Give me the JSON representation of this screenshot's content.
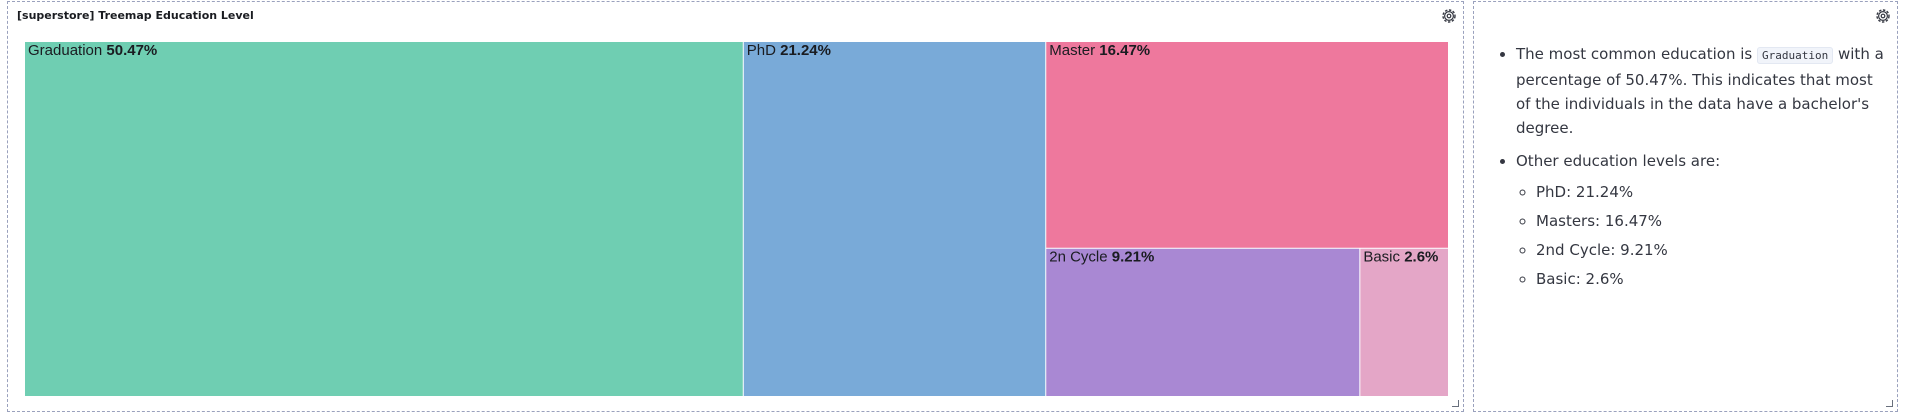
{
  "panel_title": "[superstore] Treemap Education Level",
  "chart_data": {
    "type": "treemap",
    "title": "[superstore] Treemap Education Level",
    "items": [
      {
        "label": "Graduation",
        "value": 50.47,
        "value_label": "50.47%",
        "color": "#6fceb2"
      },
      {
        "label": "PhD",
        "value": 21.24,
        "value_label": "21.24%",
        "color": "#79aad8"
      },
      {
        "label": "Master",
        "value": 16.47,
        "value_label": "16.47%",
        "color": "#ee789d"
      },
      {
        "label": "2n Cycle",
        "value": 9.21,
        "value_label": "9.21%",
        "color": "#a988d3"
      },
      {
        "label": "Basic",
        "value": 2.6,
        "value_label": "2.6%",
        "color": "#e4a6c7"
      }
    ]
  },
  "notes": {
    "bullet1_before": "The most common education is",
    "bullet1_code": "Graduation",
    "bullet1_after": "with a percentage of 50.47%. This indicates that most of the individuals in the data have a bachelor's degree.",
    "bullet2": "Other education levels are:",
    "sub_items": [
      "PhD: 21.24%",
      "Masters: 16.47%",
      "2nd Cycle: 9.21%",
      "Basic: 2.6%"
    ]
  },
  "icons": {
    "settings": "gear-icon",
    "resize": "resize-handle-icon"
  }
}
